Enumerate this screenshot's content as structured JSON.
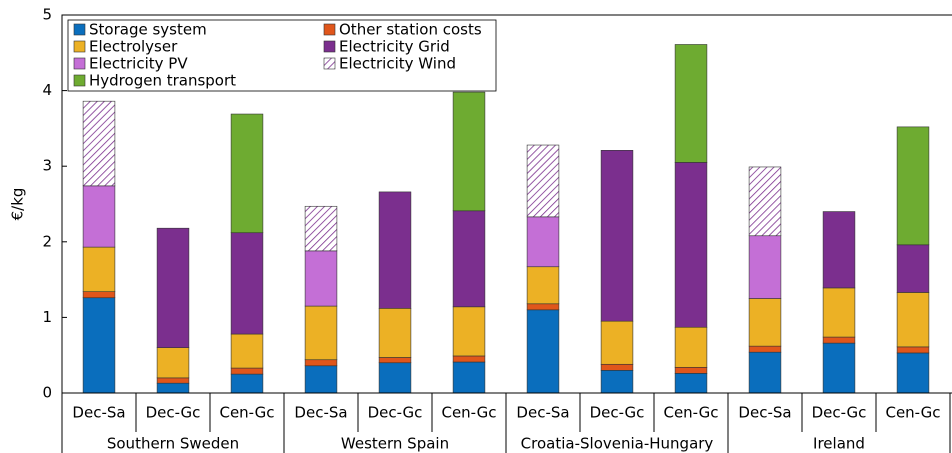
{
  "chart_data": {
    "type": "stacked_bar",
    "ylabel": "€/kg",
    "categories": [
      "Dec-Sa",
      "Dec-Gc",
      "Cen-Gc",
      "Dec-Sa",
      "Dec-Gc",
      "Cen-Gc",
      "Dec-Sa",
      "Dec-Gc",
      "Cen-Gc",
      "Dec-Sa",
      "Dec-Gc",
      "Cen-Gc"
    ],
    "groups": [
      "Southern Sweden",
      "Western Spain",
      "Croatia-Slovenia-Hungary",
      "Ireland"
    ],
    "series": [
      {
        "name": "Storage system",
        "color": "#0a6ebd",
        "values": [
          1.26,
          0.13,
          0.25,
          0.36,
          0.4,
          0.41,
          1.1,
          0.3,
          0.26,
          0.54,
          0.66,
          0.53
        ]
      },
      {
        "name": "Other station costs",
        "color": "#e0561b",
        "values": [
          0.08,
          0.07,
          0.08,
          0.08,
          0.07,
          0.08,
          0.08,
          0.08,
          0.08,
          0.08,
          0.08,
          0.08
        ]
      },
      {
        "name": "Electrolyser",
        "color": "#ecb125",
        "values": [
          0.59,
          0.4,
          0.45,
          0.71,
          0.65,
          0.65,
          0.49,
          0.57,
          0.53,
          0.63,
          0.65,
          0.72
        ]
      },
      {
        "name": "Electricity Grid",
        "color": "#7b2f8e",
        "values": [
          0,
          1.58,
          1.34,
          0,
          1.54,
          1.27,
          0,
          2.26,
          2.18,
          0,
          1.01,
          0.63
        ]
      },
      {
        "name": "Electricity PV",
        "color": "#c46fd6",
        "values": [
          0.81,
          0,
          0,
          0.73,
          0,
          0,
          0.66,
          0,
          0,
          0.83,
          0,
          0
        ]
      },
      {
        "name": "Electricity Wind",
        "color": "#7b2f8e",
        "hatch": true,
        "values": [
          1.12,
          0,
          0,
          0.59,
          0,
          0,
          0.95,
          0,
          0,
          0.91,
          0,
          0
        ]
      },
      {
        "name": "Hydrogen transport",
        "color": "#6eab31",
        "values": [
          0,
          0,
          1.57,
          0,
          0,
          1.57,
          0,
          0,
          1.56,
          0,
          0,
          1.56
        ]
      }
    ],
    "ylim": [
      0,
      5
    ],
    "yticks": [
      0,
      1,
      2,
      3,
      4,
      5
    ],
    "legend": "upper left"
  }
}
